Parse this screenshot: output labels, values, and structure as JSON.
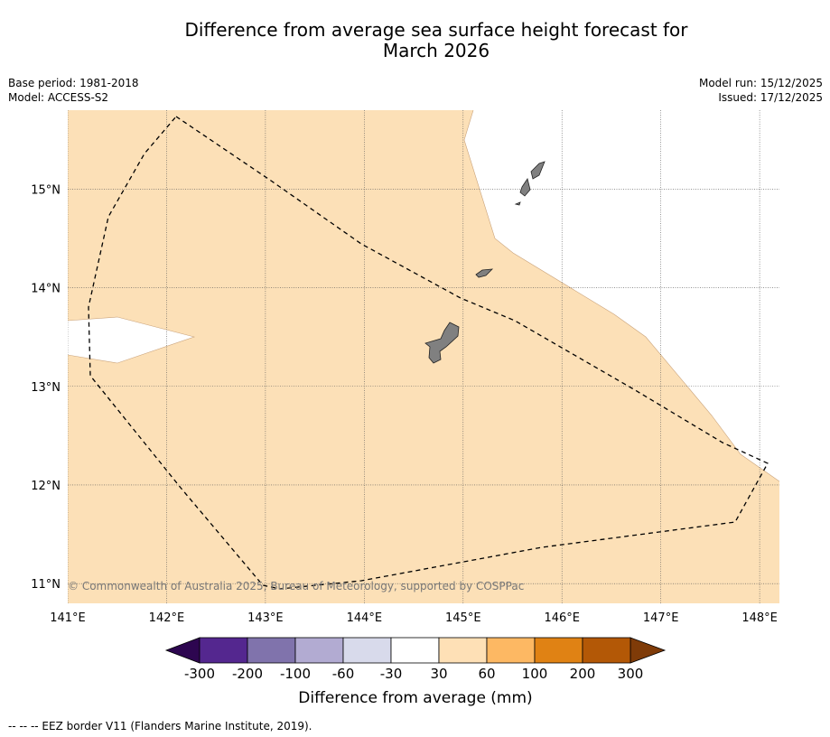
{
  "title": {
    "line1": "Difference from average sea surface height forecast for",
    "line2": "March 2026"
  },
  "metadata": {
    "base_period": "Base period: 1981-2018",
    "model": "Model: ACCESS-S2",
    "model_run": "Model run: 15/12/2025",
    "issued": "Issued: 17/12/2025"
  },
  "map": {
    "lon_range": [
      141.0,
      148.2
    ],
    "lat_range": [
      10.8,
      15.8
    ],
    "x_ticks": [
      {
        "value": 141,
        "label": "141°E"
      },
      {
        "value": 142,
        "label": "142°E"
      },
      {
        "value": 143,
        "label": "143°E"
      },
      {
        "value": 144,
        "label": "144°E"
      },
      {
        "value": 145,
        "label": "145°E"
      },
      {
        "value": 146,
        "label": "146°E"
      },
      {
        "value": 147,
        "label": "147°E"
      },
      {
        "value": 148,
        "label": "148°E"
      }
    ],
    "y_ticks": [
      {
        "value": 15,
        "label": "15°N"
      },
      {
        "value": 14,
        "label": "14°N"
      },
      {
        "value": 13,
        "label": "13°N"
      },
      {
        "value": 12,
        "label": "12°N"
      },
      {
        "value": 11,
        "label": "11°N"
      }
    ],
    "field_color": "#fce0b7",
    "land_color": "#808080",
    "copyright": "© Commonwealth of Australia 2025, Bureau of Meteorology, supported by COSPPac"
  },
  "colorbar": {
    "label": "Difference from average (mm)",
    "under_color": "#2d0650",
    "over_color": "#7f3b08",
    "bins": [
      {
        "from": -300,
        "to": -200,
        "color": "#54278f"
      },
      {
        "from": -200,
        "to": -100,
        "color": "#8073ac"
      },
      {
        "from": -100,
        "to": -60,
        "color": "#b2abd2"
      },
      {
        "from": -60,
        "to": -30,
        "color": "#d8daeb"
      },
      {
        "from": -30,
        "to": 30,
        "color": "#ffffff"
      },
      {
        "from": 30,
        "to": 60,
        "color": "#fee0b6"
      },
      {
        "from": 60,
        "to": 100,
        "color": "#fdb863"
      },
      {
        "from": 100,
        "to": 200,
        "color": "#e08214"
      },
      {
        "from": 200,
        "to": 300,
        "color": "#b35806"
      }
    ],
    "tick_labels": [
      "-300",
      "-200",
      "-100",
      "-60",
      "-30",
      "30",
      "60",
      "100",
      "200",
      "300"
    ]
  },
  "legend": {
    "eez_line": "--  --  -- EEZ border V11 (Flanders Marine Institute, 2019)."
  }
}
